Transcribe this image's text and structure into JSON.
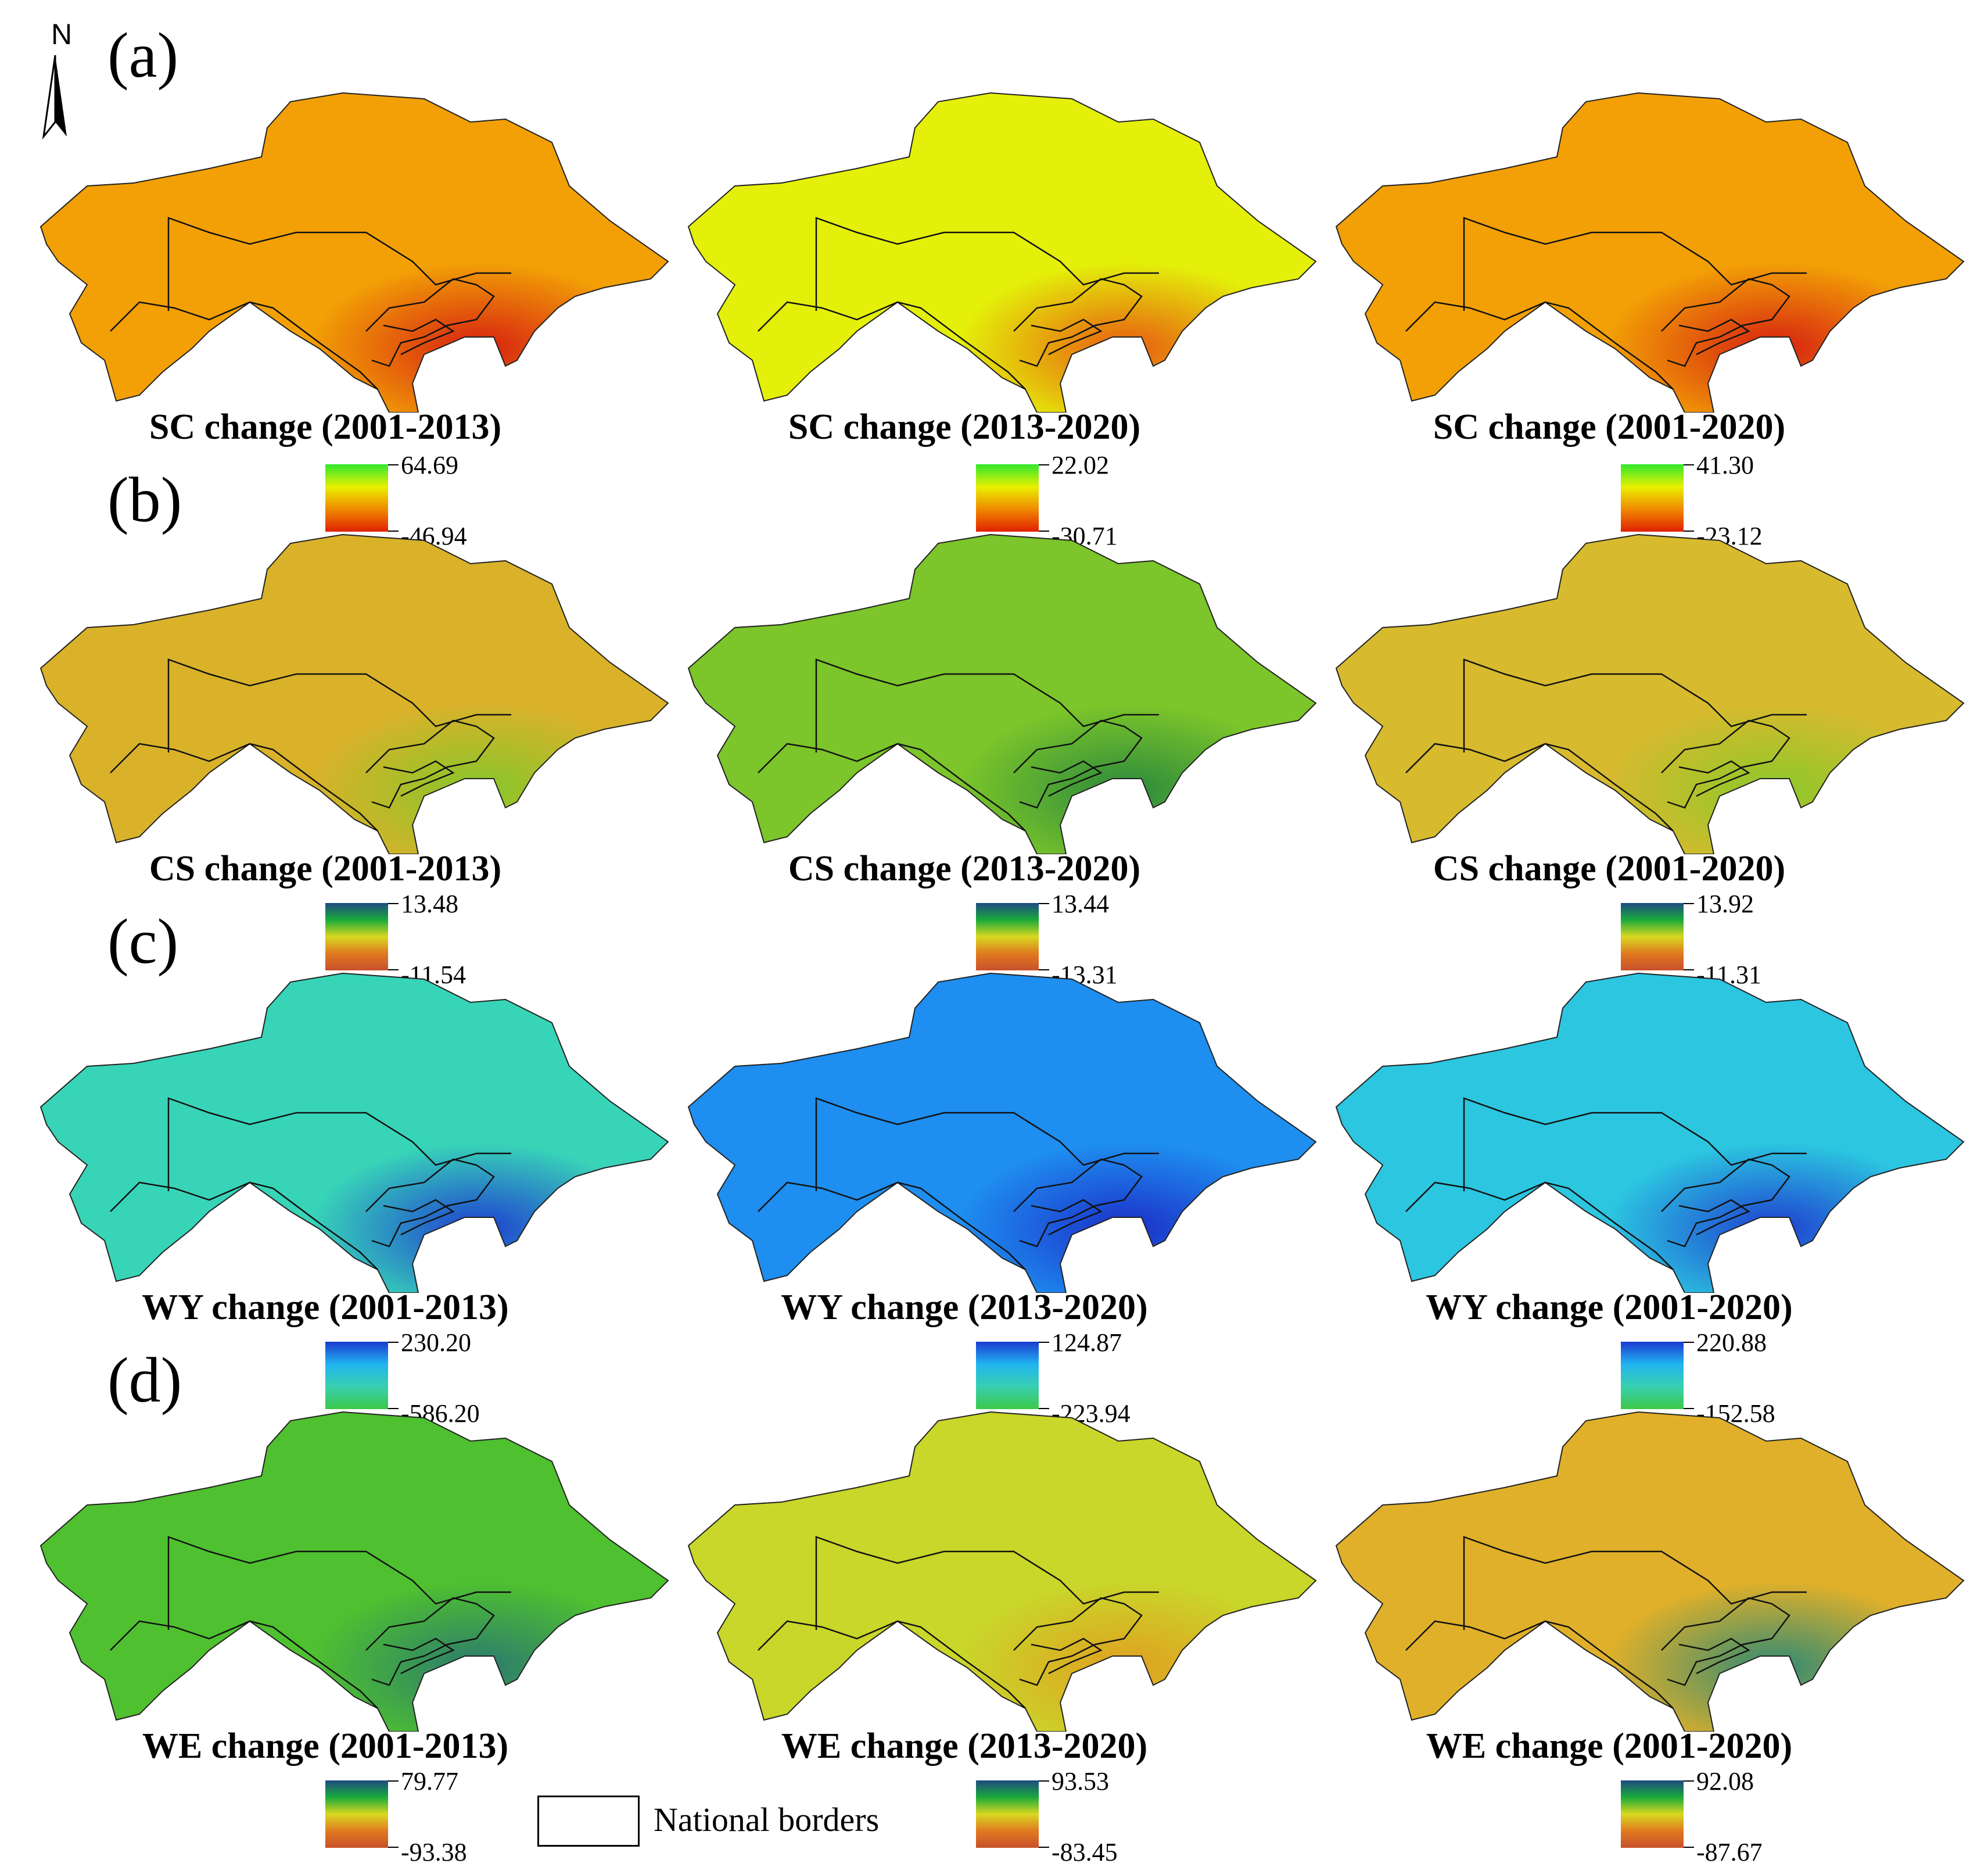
{
  "north_label": "N",
  "border_legend_label": "National borders",
  "rows": [
    {
      "label": "(a)",
      "panels": [
        {
          "title": "SC change (2001-2013)",
          "max": "64.69",
          "min": "-46.94",
          "palette": "sc",
          "base": "#f2a006",
          "hot": "#d62010"
        },
        {
          "title": "SC change (2013-2020)",
          "max": "22.02",
          "min": "-30.71",
          "palette": "sc",
          "base": "#e4f00a",
          "hot": "#e85a10"
        },
        {
          "title": "SC change (2001-2020)",
          "max": "41.30",
          "min": "-23.12",
          "palette": "sc",
          "base": "#f2a006",
          "hot": "#d62010"
        }
      ]
    },
    {
      "label": "(b)",
      "panels": [
        {
          "title": "CS change (2001-2013)",
          "max": "13.48",
          "min": "-11.54",
          "palette": "cs",
          "base": "#d9b22a",
          "hot": "#86c62a"
        },
        {
          "title": "CS change (2013-2020)",
          "max": "13.44",
          "min": "-13.31",
          "palette": "cs",
          "base": "#7cc52a",
          "hot": "#2c8a3c"
        },
        {
          "title": "CS change (2001-2020)",
          "max": "13.92",
          "min": "-11.31",
          "palette": "cs",
          "base": "#d7ba2e",
          "hot": "#8cc82a"
        }
      ]
    },
    {
      "label": "(c)",
      "panels": [
        {
          "title": "WY change (2001-2013)",
          "max": "230.20",
          "min": "-586.20",
          "palette": "wy",
          "base": "#38d4b8",
          "hot": "#1e3fd0"
        },
        {
          "title": "WY change (2013-2020)",
          "max": "124.87",
          "min": "-223.94",
          "palette": "wy",
          "base": "#1e8ef0",
          "hot": "#1c2fc8"
        },
        {
          "title": "WY change (2001-2020)",
          "max": "220.88",
          "min": "-152.58",
          "palette": "wy",
          "base": "#2cc6e0",
          "hot": "#1e3fd0"
        }
      ]
    },
    {
      "label": "(d)",
      "panels": [
        {
          "title": "WE change (2001-2013)",
          "max": "79.77",
          "min": "-93.38",
          "palette": "we",
          "base": "#4fc030",
          "hot": "#2b7a6e"
        },
        {
          "title": "WE change (2013-2020)",
          "max": "93.53",
          "min": "-83.45",
          "palette": "we",
          "base": "#c9d62a",
          "hot": "#e0a020"
        },
        {
          "title": "WE change (2001-2020)",
          "max": "92.08",
          "min": "-87.67",
          "palette": "we",
          "base": "#e0b02a",
          "hot": "#2f8a74"
        }
      ]
    }
  ],
  "colors": {
    "sc": [
      "#2ee82e",
      "#e8f000",
      "#f08a00",
      "#e02000"
    ],
    "cs": [
      "#1e4a82",
      "#1aaa3a",
      "#d8d820",
      "#e07a20",
      "#c8502a"
    ],
    "wy": [
      "#1c3ad0",
      "#20b4f0",
      "#38d0b0",
      "#3cc848"
    ],
    "we": [
      "#1e4a82",
      "#1aaa3a",
      "#d8d820",
      "#e07a20",
      "#c8502a"
    ]
  }
}
